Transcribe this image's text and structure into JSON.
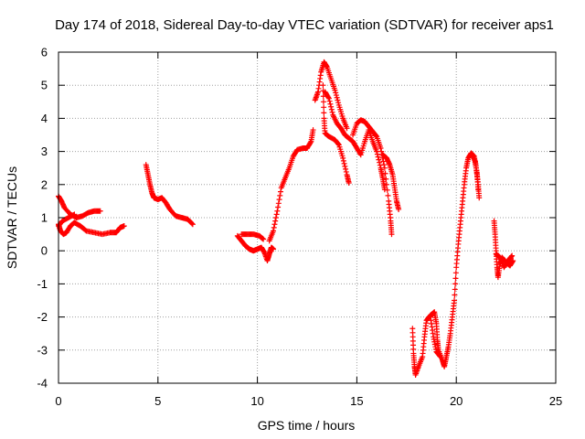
{
  "chart_data": {
    "type": "scatter",
    "title": "Day 174 of 2018, Sidereal Day-to-day VTEC variation (SDTVAR) for receiver aps1",
    "xlabel": "GPS time / hours",
    "ylabel": "SDTVAR / TECUs",
    "xlim": [
      0,
      25
    ],
    "ylim": [
      -4,
      6
    ],
    "xticks": [
      "0",
      "5",
      "10",
      "15",
      "20",
      "25"
    ],
    "yticks": [
      "-4",
      "-3",
      "-2",
      "-1",
      "0",
      "1",
      "2",
      "3",
      "4",
      "5",
      "6"
    ],
    "grid": true,
    "marker": "+",
    "color": "#ff0000",
    "series": [
      {
        "name": "SDTVAR",
        "segments": [
          [
            [
              0.0,
              1.65
            ],
            [
              0.15,
              1.5
            ],
            [
              0.3,
              1.3
            ],
            [
              0.6,
              1.1
            ],
            [
              0.9,
              1.0
            ],
            [
              1.2,
              1.05
            ],
            [
              1.5,
              1.15
            ],
            [
              1.8,
              1.2
            ],
            [
              2.1,
              1.2
            ]
          ],
          [
            [
              0.0,
              0.8
            ],
            [
              0.1,
              0.6
            ],
            [
              0.25,
              0.5
            ],
            [
              0.4,
              0.55
            ],
            [
              0.6,
              0.75
            ],
            [
              0.8,
              0.85
            ],
            [
              1.1,
              0.75
            ],
            [
              1.4,
              0.6
            ],
            [
              1.8,
              0.55
            ],
            [
              2.2,
              0.5
            ],
            [
              2.6,
              0.55
            ],
            [
              2.9,
              0.55
            ],
            [
              3.1,
              0.7
            ],
            [
              3.3,
              0.75
            ]
          ],
          [
            [
              0.0,
              0.75
            ],
            [
              0.2,
              0.9
            ],
            [
              0.5,
              1.0
            ],
            [
              0.8,
              1.1
            ]
          ],
          [
            [
              4.4,
              2.6
            ],
            [
              4.5,
              2.3
            ],
            [
              4.6,
              2.0
            ],
            [
              4.7,
              1.75
            ],
            [
              4.8,
              1.6
            ],
            [
              5.0,
              1.55
            ],
            [
              5.2,
              1.6
            ],
            [
              5.4,
              1.45
            ],
            [
              5.6,
              1.25
            ],
            [
              5.9,
              1.05
            ],
            [
              6.2,
              1.0
            ],
            [
              6.5,
              0.95
            ],
            [
              6.75,
              0.8
            ]
          ],
          [
            [
              9.0,
              0.45
            ],
            [
              9.2,
              0.3
            ],
            [
              9.4,
              0.15
            ],
            [
              9.6,
              0.05
            ],
            [
              9.8,
              0.0
            ],
            [
              10.0,
              0.05
            ],
            [
              10.2,
              0.1
            ],
            [
              10.35,
              -0.05
            ],
            [
              10.5,
              -0.3
            ],
            [
              10.6,
              -0.1
            ],
            [
              10.7,
              0.1
            ],
            [
              10.8,
              0.05
            ]
          ],
          [
            [
              9.2,
              0.5
            ],
            [
              9.5,
              0.5
            ],
            [
              9.8,
              0.5
            ],
            [
              10.1,
              0.45
            ],
            [
              10.3,
              0.35
            ]
          ],
          [
            [
              10.6,
              0.3
            ],
            [
              10.8,
              0.6
            ],
            [
              11.0,
              1.2
            ],
            [
              11.2,
              1.9
            ],
            [
              11.4,
              2.2
            ],
            [
              11.6,
              2.5
            ],
            [
              11.8,
              2.85
            ],
            [
              12.0,
              3.05
            ],
            [
              12.3,
              3.1
            ],
            [
              12.5,
              3.1
            ],
            [
              12.7,
              3.3
            ],
            [
              12.8,
              3.65
            ]
          ],
          [
            [
              12.9,
              4.55
            ],
            [
              13.05,
              4.8
            ],
            [
              13.2,
              5.4
            ],
            [
              13.35,
              5.7
            ],
            [
              13.5,
              5.55
            ],
            [
              13.7,
              5.2
            ],
            [
              13.9,
              4.85
            ],
            [
              14.1,
              4.4
            ],
            [
              14.3,
              4.0
            ],
            [
              14.5,
              3.7
            ]
          ],
          [
            [
              13.3,
              5.0
            ],
            [
              13.35,
              4.0
            ],
            [
              13.4,
              3.55
            ],
            [
              13.6,
              3.45
            ],
            [
              13.9,
              3.35
            ],
            [
              14.1,
              3.2
            ],
            [
              14.3,
              2.8
            ],
            [
              14.5,
              2.3
            ],
            [
              14.6,
              2.05
            ]
          ],
          [
            [
              13.4,
              4.8
            ],
            [
              13.6,
              4.6
            ],
            [
              13.8,
              4.1
            ],
            [
              14.0,
              3.85
            ],
            [
              14.2,
              3.7
            ],
            [
              14.4,
              3.5
            ],
            [
              14.6,
              3.4
            ],
            [
              14.8,
              3.3
            ],
            [
              15.0,
              3.1
            ],
            [
              15.2,
              2.9
            ],
            [
              15.4,
              3.3
            ],
            [
              15.6,
              3.65
            ],
            [
              15.8,
              3.3
            ],
            [
              16.0,
              3.0
            ],
            [
              16.2,
              2.5
            ],
            [
              16.3,
              2.2
            ],
            [
              16.4,
              1.85
            ]
          ],
          [
            [
              14.8,
              3.5
            ],
            [
              15.0,
              3.85
            ],
            [
              15.2,
              3.95
            ],
            [
              15.4,
              3.9
            ],
            [
              15.6,
              3.75
            ],
            [
              15.8,
              3.6
            ],
            [
              16.0,
              3.45
            ],
            [
              16.2,
              3.1
            ],
            [
              16.4,
              2.5
            ],
            [
              16.6,
              1.5
            ],
            [
              16.7,
              0.9
            ],
            [
              16.75,
              0.5
            ]
          ],
          [
            [
              16.3,
              2.9
            ],
            [
              16.5,
              2.8
            ],
            [
              16.65,
              2.6
            ],
            [
              16.8,
              2.3
            ],
            [
              16.9,
              1.9
            ],
            [
              17.0,
              1.5
            ],
            [
              17.1,
              1.25
            ]
          ],
          [
            [
              17.8,
              -2.35
            ],
            [
              17.85,
              -3.1
            ],
            [
              17.9,
              -3.5
            ],
            [
              17.95,
              -3.75
            ],
            [
              18.1,
              -3.5
            ],
            [
              18.3,
              -3.2
            ],
            [
              18.4,
              -2.6
            ],
            [
              18.5,
              -2.1
            ],
            [
              18.7,
              -1.95
            ],
            [
              18.9,
              -1.85
            ],
            [
              19.0,
              -2.2
            ],
            [
              19.05,
              -2.7
            ],
            [
              19.1,
              -3.0
            ],
            [
              19.3,
              -3.3
            ],
            [
              19.4,
              -3.5
            ],
            [
              19.5,
              -3.2
            ],
            [
              19.6,
              -2.9
            ],
            [
              19.7,
              -2.5
            ],
            [
              19.8,
              -2.0
            ],
            [
              19.9,
              -1.5
            ],
            [
              20.0,
              -0.5
            ],
            [
              20.1,
              0.2
            ],
            [
              20.2,
              0.8
            ],
            [
              20.3,
              1.4
            ],
            [
              20.4,
              2.0
            ],
            [
              20.5,
              2.5
            ],
            [
              20.6,
              2.8
            ],
            [
              20.75,
              2.95
            ],
            [
              20.9,
              2.85
            ],
            [
              21.0,
              2.5
            ],
            [
              21.1,
              2.0
            ],
            [
              21.15,
              1.6
            ]
          ],
          [
            [
              18.7,
              -2.0
            ],
            [
              18.85,
              -2.6
            ],
            [
              19.0,
              -3.05
            ],
            [
              19.2,
              -3.2
            ]
          ],
          [
            [
              20.8,
              2.9
            ],
            [
              20.95,
              2.7
            ],
            [
              21.05,
              2.3
            ],
            [
              21.1,
              1.85
            ]
          ],
          [
            [
              21.9,
              0.9
            ],
            [
              21.95,
              0.5
            ],
            [
              22.0,
              0.0
            ],
            [
              22.05,
              -0.5
            ],
            [
              22.1,
              -0.8
            ],
            [
              22.2,
              -0.4
            ],
            [
              22.3,
              -0.2
            ],
            [
              22.5,
              -0.35
            ],
            [
              22.7,
              -0.45
            ],
            [
              22.85,
              -0.3
            ]
          ],
          [
            [
              22.0,
              -0.1
            ],
            [
              22.2,
              -0.2
            ],
            [
              22.4,
              -0.5
            ],
            [
              22.6,
              -0.3
            ],
            [
              22.8,
              -0.15
            ]
          ]
        ]
      }
    ]
  }
}
